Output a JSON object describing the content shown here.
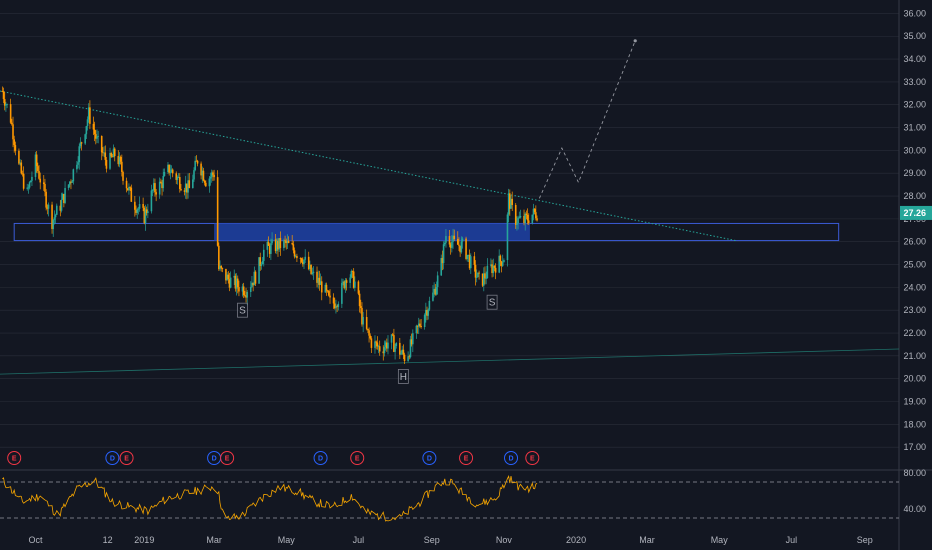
{
  "chart_data": {
    "type": "candlestick",
    "price_axis": {
      "min": 16.0,
      "max": 36.5,
      "ticks": [
        "36.00",
        "35.00",
        "34.00",
        "33.00",
        "32.00",
        "31.00",
        "30.00",
        "29.00",
        "28.00",
        "27.00",
        "26.00",
        "25.00",
        "24.00",
        "23.00",
        "22.00",
        "21.00",
        "20.00",
        "19.00",
        "18.00",
        "17.00"
      ]
    },
    "current_price": {
      "label": "27.26",
      "value": 27.26,
      "color": "#26a69a"
    },
    "rsi_axis": {
      "ticks": [
        "80.00",
        "40.00"
      ],
      "upper_level": 70,
      "lower_level": 30
    },
    "time_axis": [
      "Oct",
      "12",
      "2019",
      "Mar",
      "May",
      "Jul",
      "Sep",
      "Nov",
      "2020",
      "Mar",
      "May",
      "Jul",
      "Sep"
    ],
    "time_range": [
      "2018-09-01",
      "2020-09-30"
    ],
    "price_path": [
      [
        "2018-09-03",
        32.6
      ],
      [
        "2018-09-10",
        31.4
      ],
      [
        "2018-09-17",
        29.3
      ],
      [
        "2018-09-24",
        28.1
      ],
      [
        "2018-10-01",
        29.5
      ],
      [
        "2018-10-08",
        28.2
      ],
      [
        "2018-10-15",
        26.9
      ],
      [
        "2018-10-22",
        27.6
      ],
      [
        "2018-11-01",
        28.9
      ],
      [
        "2018-11-08",
        30.2
      ],
      [
        "2018-11-15",
        31.6
      ],
      [
        "2018-11-22",
        30.4
      ],
      [
        "2018-12-01",
        29.4
      ],
      [
        "2018-12-08",
        29.9
      ],
      [
        "2018-12-15",
        28.8
      ],
      [
        "2018-12-22",
        27.8
      ],
      [
        "2019-01-01",
        27.1
      ],
      [
        "2019-01-08",
        28.2
      ],
      [
        "2019-01-15",
        28.5
      ],
      [
        "2019-01-22",
        29.2
      ],
      [
        "2019-02-01",
        28.6
      ],
      [
        "2019-02-08",
        28.3
      ],
      [
        "2019-02-15",
        29.6
      ],
      [
        "2019-02-22",
        28.7
      ],
      [
        "2019-03-01",
        29.0
      ],
      [
        "2019-03-05",
        24.8
      ],
      [
        "2019-03-12",
        24.4
      ],
      [
        "2019-03-20",
        24.1
      ],
      [
        "2019-03-28",
        23.9
      ],
      [
        "2019-04-05",
        24.5
      ],
      [
        "2019-04-12",
        25.6
      ],
      [
        "2019-04-20",
        25.8
      ],
      [
        "2019-05-01",
        25.9
      ],
      [
        "2019-05-08",
        25.6
      ],
      [
        "2019-05-15",
        25.3
      ],
      [
        "2019-05-22",
        24.6
      ],
      [
        "2019-06-01",
        24.0
      ],
      [
        "2019-06-08",
        23.2
      ],
      [
        "2019-06-15",
        23.6
      ],
      [
        "2019-06-22",
        24.7
      ],
      [
        "2019-06-28",
        24.2
      ],
      [
        "2019-07-05",
        22.4
      ],
      [
        "2019-07-12",
        21.6
      ],
      [
        "2019-07-20",
        21.3
      ],
      [
        "2019-07-28",
        21.7
      ],
      [
        "2019-08-05",
        21.2
      ],
      [
        "2019-08-10",
        20.9
      ],
      [
        "2019-08-18",
        21.9
      ],
      [
        "2019-08-25",
        22.8
      ],
      [
        "2019-09-01",
        23.5
      ],
      [
        "2019-09-08",
        24.7
      ],
      [
        "2019-09-13",
        26.3
      ],
      [
        "2019-09-20",
        25.9
      ],
      [
        "2019-09-28",
        25.8
      ],
      [
        "2019-10-05",
        24.9
      ],
      [
        "2019-10-12",
        24.2
      ],
      [
        "2019-10-20",
        24.8
      ],
      [
        "2019-10-28",
        25.1
      ],
      [
        "2019-11-02",
        25.4
      ],
      [
        "2019-11-05",
        27.9
      ],
      [
        "2019-11-10",
        27.0
      ],
      [
        "2019-11-18",
        26.9
      ],
      [
        "2019-11-25",
        27.2
      ],
      [
        "2019-12-01",
        27.3
      ]
    ],
    "rsi_path": [
      [
        "2018-09-03",
        72
      ],
      [
        "2018-09-20",
        48
      ],
      [
        "2018-10-05",
        55
      ],
      [
        "2018-10-20",
        33
      ],
      [
        "2018-11-05",
        62
      ],
      [
        "2018-11-20",
        72
      ],
      [
        "2018-12-05",
        48
      ],
      [
        "2018-12-20",
        42
      ],
      [
        "2019-01-05",
        38
      ],
      [
        "2019-01-20",
        52
      ],
      [
        "2019-02-05",
        57
      ],
      [
        "2019-02-20",
        62
      ],
      [
        "2019-03-03",
        66
      ],
      [
        "2019-03-10",
        28
      ],
      [
        "2019-03-25",
        33
      ],
      [
        "2019-04-10",
        52
      ],
      [
        "2019-04-25",
        64
      ],
      [
        "2019-05-10",
        60
      ],
      [
        "2019-05-25",
        48
      ],
      [
        "2019-06-10",
        42
      ],
      [
        "2019-06-25",
        55
      ],
      [
        "2019-07-08",
        36
      ],
      [
        "2019-07-20",
        32
      ],
      [
        "2019-08-05",
        30
      ],
      [
        "2019-08-20",
        45
      ],
      [
        "2019-09-05",
        66
      ],
      [
        "2019-09-15",
        73
      ],
      [
        "2019-09-25",
        60
      ],
      [
        "2019-10-10",
        45
      ],
      [
        "2019-10-25",
        52
      ],
      [
        "2019-11-05",
        75
      ],
      [
        "2019-11-15",
        63
      ],
      [
        "2019-11-25",
        64
      ],
      [
        "2019-12-01",
        66
      ]
    ],
    "resistance_zone": {
      "low": 26.05,
      "high": 26.8,
      "start": "2018-09-13",
      "end": "2020-08-10"
    },
    "descending_trendline": [
      [
        "2018-09-01",
        32.6
      ],
      [
        "2020-05-15",
        26.05
      ]
    ],
    "rising_trendline": [
      [
        "2018-09-01",
        20.2
      ],
      [
        "2020-09-30",
        21.3
      ]
    ],
    "pattern_labels": [
      {
        "text": "S",
        "date": "2019-03-25",
        "price": 23.0
      },
      {
        "text": "H",
        "date": "2019-08-08",
        "price": 20.1
      },
      {
        "text": "S",
        "date": "2019-10-22",
        "price": 23.35
      }
    ],
    "projection_path": [
      [
        "2019-12-01",
        27.9
      ],
      [
        "2019-12-20",
        30.1
      ],
      [
        "2020-01-03",
        28.6
      ],
      [
        "2020-02-20",
        34.8
      ]
    ],
    "event_markers": [
      {
        "text": "E",
        "date": "2018-09-13",
        "color": "#f23645"
      },
      {
        "text": "D",
        "date": "2018-12-05",
        "color": "#2962ff"
      },
      {
        "text": "E",
        "date": "2018-12-17",
        "color": "#f23645"
      },
      {
        "text": "D",
        "date": "2019-03-01",
        "color": "#2962ff"
      },
      {
        "text": "E",
        "date": "2019-03-12",
        "color": "#f23645"
      },
      {
        "text": "D",
        "date": "2019-05-30",
        "color": "#2962ff"
      },
      {
        "text": "E",
        "date": "2019-06-30",
        "color": "#f23645"
      },
      {
        "text": "D",
        "date": "2019-08-30",
        "color": "#2962ff"
      },
      {
        "text": "E",
        "date": "2019-09-30",
        "color": "#f23645"
      },
      {
        "text": "D",
        "date": "2019-11-07",
        "color": "#2962ff"
      },
      {
        "text": "E",
        "date": "2019-11-25",
        "color": "#f23645"
      }
    ],
    "colors": {
      "background": "#131722",
      "up": "#26a69a",
      "down": "#ff9800",
      "zone_fill": "#1e3fa0",
      "zone_border": "#3b5bd6",
      "trendline": "#26a69a",
      "projection": "#9598a1",
      "rsi_line": "#f7a600",
      "grid": "#2a2e39"
    }
  }
}
